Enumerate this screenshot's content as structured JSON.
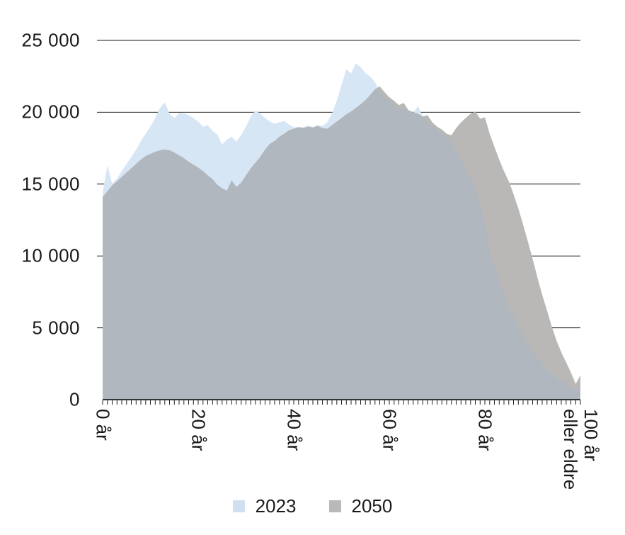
{
  "chart_data": {
    "type": "area",
    "title": "",
    "x_description": "age in years, 0 to 100 (1-year steps; last point means 100 years or older)",
    "ylim": [
      0,
      25000
    ],
    "gridlines": "horizontal",
    "legend_position": "bottom",
    "y_ticks": [
      {
        "value": 25000,
        "label": "25 000"
      },
      {
        "value": 20000,
        "label": "20 000"
      },
      {
        "value": 15000,
        "label": "15 000"
      },
      {
        "value": 10000,
        "label": "10 000"
      },
      {
        "value": 5000,
        "label": "5 000"
      },
      {
        "value": 0,
        "label": "0"
      }
    ],
    "x_ticks": [
      {
        "age": 0,
        "label": "0 år"
      },
      {
        "age": 20,
        "label": "20 år"
      },
      {
        "age": 40,
        "label": "40 år"
      },
      {
        "age": 60,
        "label": "60 år"
      },
      {
        "age": 80,
        "label": "80 år"
      },
      {
        "age": 100,
        "label": "100 år\neller eldre"
      }
    ],
    "colors": {
      "fill_2023": "#d7e6f5",
      "fill_2050": "#b9b8b6",
      "fill_overlap": "#b1b7be",
      "gridline": "#1a1a1a",
      "axis": "#000000"
    },
    "series": [
      {
        "name": "2023",
        "swatch": "#cfe0f1",
        "values": [
          14400,
          16300,
          15000,
          15400,
          15900,
          16400,
          16900,
          17400,
          18000,
          18500,
          19000,
          19600,
          20300,
          20700,
          19900,
          19600,
          19950,
          19900,
          19800,
          19600,
          19350,
          19000,
          19100,
          18700,
          18450,
          17750,
          18100,
          18300,
          17950,
          18400,
          19000,
          19700,
          20150,
          19900,
          19600,
          19350,
          19200,
          19300,
          19400,
          19150,
          18950,
          19000,
          18950,
          19100,
          18950,
          19100,
          19050,
          19300,
          19900,
          20800,
          21900,
          23000,
          22700,
          23400,
          23150,
          22700,
          22500,
          22100,
          21500,
          21000,
          20750,
          20550,
          20200,
          20350,
          20100,
          19950,
          20450,
          19700,
          19350,
          19100,
          18850,
          18500,
          18200,
          17900,
          17400,
          16700,
          16000,
          15400,
          14800,
          13600,
          12300,
          10400,
          9300,
          8300,
          7400,
          6500,
          5800,
          5100,
          4500,
          3900,
          3400,
          2900,
          2500,
          2100,
          1800,
          1500,
          1300,
          1100,
          900,
          700,
          1000
        ]
      },
      {
        "name": "2050",
        "swatch": "#b9b9b9",
        "values": [
          14100,
          14500,
          14900,
          15200,
          15500,
          15800,
          16100,
          16400,
          16700,
          16950,
          17100,
          17250,
          17350,
          17400,
          17350,
          17200,
          17000,
          16800,
          16550,
          16350,
          16150,
          15900,
          15600,
          15350,
          14950,
          14700,
          14550,
          15250,
          14800,
          15100,
          15600,
          16100,
          16500,
          16900,
          17400,
          17800,
          18000,
          18300,
          18500,
          18750,
          18850,
          18950,
          18900,
          19000,
          18950,
          19050,
          18900,
          18850,
          19100,
          19350,
          19600,
          19850,
          20050,
          20300,
          20550,
          20850,
          21200,
          21600,
          21800,
          21400,
          21050,
          20800,
          20500,
          20650,
          20150,
          20000,
          19900,
          19700,
          19800,
          19300,
          19000,
          18800,
          18500,
          18400,
          18900,
          19300,
          19600,
          19900,
          20050,
          19550,
          19650,
          18500,
          17600,
          16700,
          15900,
          15200,
          14300,
          13300,
          12200,
          11000,
          9800,
          8500,
          7300,
          6200,
          5100,
          4100,
          3300,
          2600,
          1900,
          1100,
          1700
        ]
      }
    ]
  }
}
